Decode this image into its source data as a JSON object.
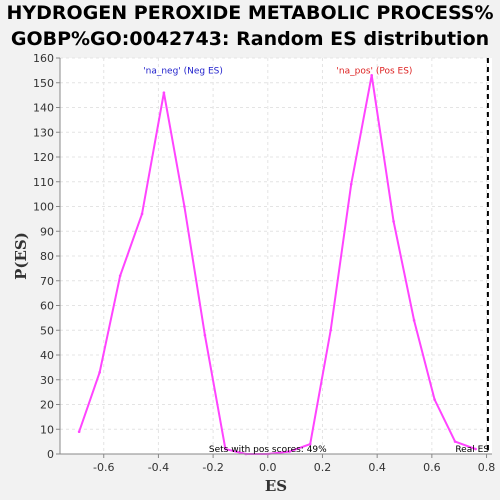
{
  "chart_data": {
    "type": "line",
    "title_lines": [
      "HYDROGEN PEROXIDE METABOLIC PROCESS%",
      "GOBP%GO:0042743: Random ES distribution"
    ],
    "xlabel": "ES",
    "ylabel": "P(ES)",
    "xlim": [
      -0.76,
      0.82
    ],
    "ylim": [
      0,
      160
    ],
    "x_ticks": [
      -0.6,
      -0.4,
      -0.2,
      0.0,
      0.2,
      0.4,
      0.6,
      0.8
    ],
    "y_ticks": [
      0,
      10,
      20,
      30,
      40,
      50,
      60,
      70,
      80,
      90,
      100,
      110,
      120,
      130,
      140,
      150,
      160
    ],
    "grid": true,
    "line_color": "#ff44ff",
    "series": [
      {
        "x": [
          -0.69,
          -0.615,
          -0.54,
          -0.46,
          -0.38,
          -0.305,
          -0.23,
          -0.155,
          -0.08,
          0.0,
          0.08,
          0.155,
          0.23,
          0.305,
          0.38,
          0.46,
          0.535,
          0.61,
          0.685,
          0.76
        ],
        "values": [
          9,
          33,
          72,
          97,
          146,
          100,
          48,
          2,
          0,
          0,
          1,
          4,
          50,
          109,
          153,
          94,
          54,
          22,
          5,
          2
        ]
      }
    ],
    "annotations": {
      "neg": {
        "text": "'na_neg' (Neg ES)",
        "x": -0.31,
        "y": 157,
        "color": "#2222cc"
      },
      "pos": {
        "text": "'na_pos' (Pos ES)",
        "x": 0.39,
        "y": 157,
        "color": "#dd2222"
      },
      "sets": {
        "text": "Sets with pos scores: 49%",
        "x": 0.0,
        "y": 0
      },
      "real": {
        "text": "Real ES",
        "x": 0.805,
        "y": 0
      }
    },
    "real_es": 0.805
  }
}
